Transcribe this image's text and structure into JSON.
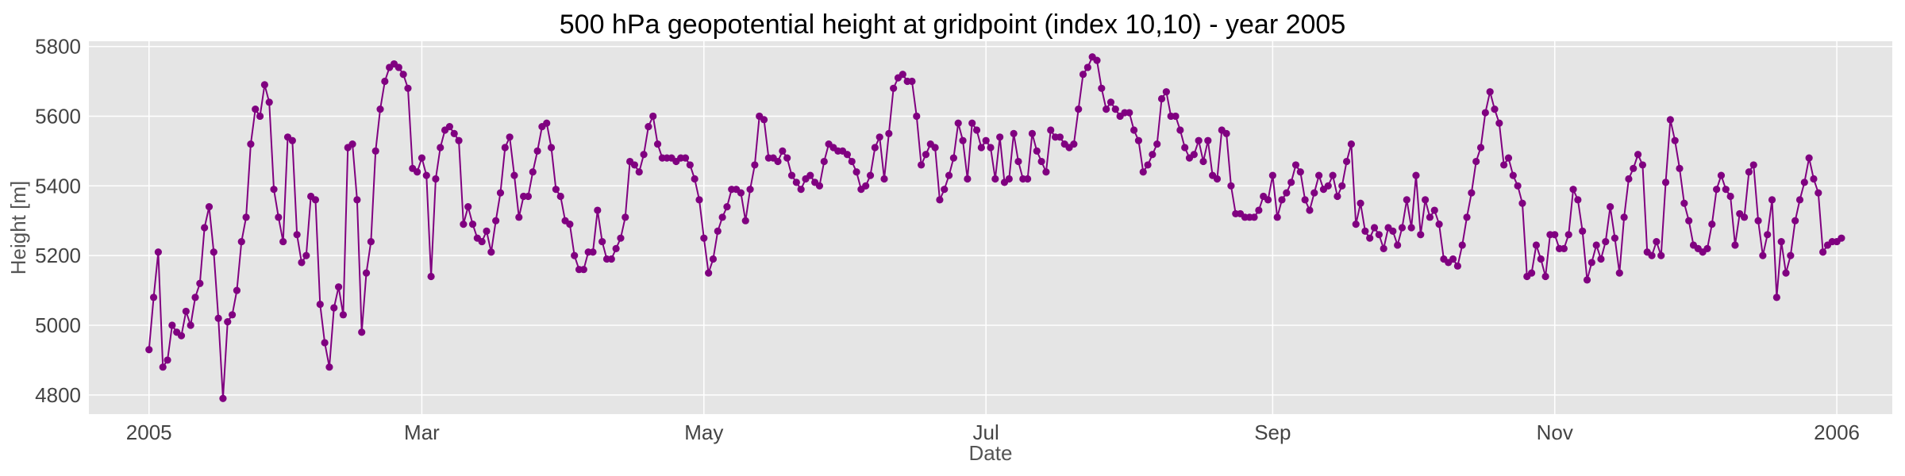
{
  "chart_data": {
    "type": "line",
    "title": "500 hPa geopotential height at gridpoint (index 10,10) - year 2005",
    "xlabel": "Date",
    "ylabel": "Height [m]",
    "x_ticks": [
      "2005",
      "Mar",
      "May",
      "Jul",
      "Sep",
      "Nov",
      "2006"
    ],
    "x_tick_dates": [
      "2005-01-01",
      "2005-03-01",
      "2005-05-01",
      "2005-07-01",
      "2005-09-01",
      "2005-11-01",
      "2006-01-01"
    ],
    "x_range": [
      "2004-12-19",
      "2006-01-13"
    ],
    "y_ticks": [
      4800,
      5000,
      5200,
      5400,
      5600,
      5800
    ],
    "ylim": [
      4745,
      5815
    ],
    "grid": true,
    "background": "#e5e5e5",
    "grid_color": "#ffffff",
    "series_color": "#800080",
    "marker": "circle",
    "x_start": "2005-01-01",
    "x_step_days": 1,
    "x_end": "2005-12-31",
    "values": [
      4930,
      5080,
      5210,
      4880,
      4900,
      5000,
      4980,
      4970,
      5040,
      5000,
      5080,
      5120,
      5280,
      5340,
      5210,
      5020,
      4790,
      5010,
      5030,
      5100,
      5240,
      5310,
      5520,
      5620,
      5600,
      5690,
      5640,
      5390,
      5310,
      5240,
      5540,
      5530,
      5260,
      5180,
      5200,
      5370,
      5360,
      5060,
      4950,
      4880,
      5050,
      5110,
      5030,
      5510,
      5520,
      5360,
      4980,
      5150,
      5240,
      5500,
      5620,
      5700,
      5740,
      5750,
      5740,
      5720,
      5680,
      5450,
      5440,
      5480,
      5430,
      5140,
      5420,
      5510,
      5560,
      5570,
      5550,
      5530,
      5290,
      5340,
      5290,
      5250,
      5240,
      5270,
      5210,
      5300,
      5380,
      5510,
      5540,
      5430,
      5310,
      5370,
      5370,
      5440,
      5500,
      5570,
      5580,
      5510,
      5390,
      5370,
      5300,
      5290,
      5200,
      5160,
      5160,
      5210,
      5210,
      5330,
      5240,
      5190,
      5190,
      5220,
      5250,
      5310,
      5470,
      5460,
      5440,
      5490,
      5570,
      5600,
      5520,
      5480,
      5480,
      5480,
      5470,
      5480,
      5480,
      5460,
      5420,
      5360,
      5250,
      5150,
      5190,
      5270,
      5310,
      5340,
      5390,
      5390,
      5380,
      5300,
      5390,
      5460,
      5600,
      5590,
      5480,
      5480,
      5470,
      5500,
      5480,
      5430,
      5410,
      5390,
      5420,
      5430,
      5410,
      5400,
      5470,
      5520,
      5510,
      5500,
      5500,
      5490,
      5470,
      5440,
      5390,
      5400,
      5430,
      5510,
      5540,
      5420,
      5550,
      5680,
      5710,
      5720,
      5700,
      5700,
      5600,
      5460,
      5490,
      5520,
      5510,
      5360,
      5390,
      5430,
      5480,
      5580,
      5530,
      5420,
      5580,
      5560,
      5510,
      5530,
      5510,
      5420,
      5540,
      5410,
      5420,
      5550,
      5470,
      5420,
      5420,
      5550,
      5500,
      5470,
      5440,
      5560,
      5540,
      5540,
      5520,
      5510,
      5520,
      5620,
      5720,
      5740,
      5770,
      5760,
      5680,
      5620,
      5640,
      5620,
      5600,
      5610,
      5610,
      5560,
      5530,
      5440,
      5460,
      5490,
      5520,
      5650,
      5670,
      5600,
      5600,
      5560,
      5510,
      5480,
      5490,
      5530,
      5470,
      5530,
      5430,
      5420,
      5560,
      5550,
      5400,
      5320,
      5320,
      5310,
      5310,
      5310,
      5330,
      5370,
      5360,
      5430,
      5310,
      5360,
      5380,
      5410,
      5460,
      5440,
      5360,
      5330,
      5380,
      5430,
      5390,
      5400,
      5430,
      5370,
      5400,
      5470,
      5520,
      5290,
      5350,
      5270,
      5250,
      5280,
      5260,
      5220,
      5280,
      5270,
      5230,
      5280,
      5360,
      5280,
      5430,
      5260,
      5360,
      5310,
      5330,
      5290,
      5190,
      5180,
      5190,
      5170,
      5230,
      5310,
      5380,
      5470,
      5510,
      5610,
      5670,
      5620,
      5580,
      5460,
      5480,
      5430,
      5400,
      5350,
      5140,
      5150,
      5230,
      5190,
      5140,
      5260,
      5260,
      5220,
      5220,
      5260,
      5390,
      5360,
      5270,
      5130,
      5180,
      5230,
      5190,
      5240,
      5340,
      5250,
      5150,
      5310,
      5420,
      5450,
      5490,
      5460,
      5210,
      5200,
      5240,
      5200,
      5410,
      5590,
      5530,
      5450,
      5350,
      5300,
      5230,
      5220,
      5210,
      5220,
      5290,
      5390,
      5430,
      5390,
      5370,
      5230,
      5320,
      5310,
      5440,
      5460,
      5300,
      5200,
      5260,
      5360,
      5080,
      5240,
      5150,
      5200,
      5300,
      5360,
      5410,
      5480,
      5420,
      5380,
      5210,
      5230,
      5240,
      5240,
      5250
    ]
  }
}
